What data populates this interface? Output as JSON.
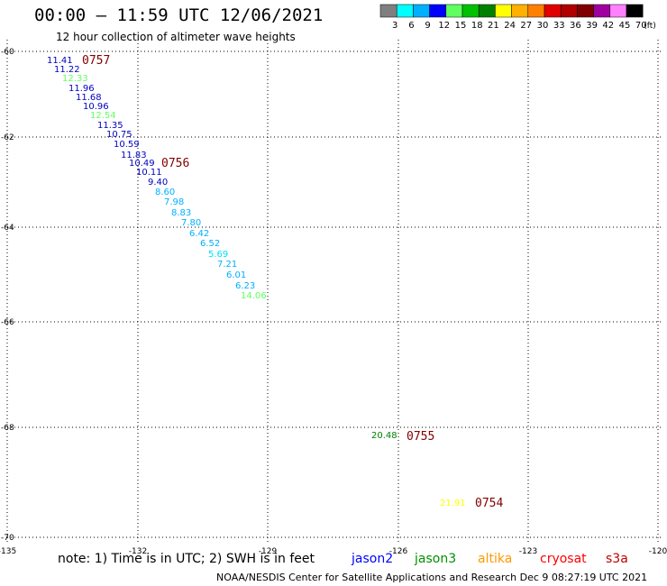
{
  "title": "00:00 – 11:59 UTC 12/06/2021",
  "subtitle": "12 hour collection of altimeter wave heights",
  "scale": {
    "values": [
      "3",
      "6",
      "9",
      "12",
      "15",
      "18",
      "21",
      "24",
      "27",
      "30",
      "33",
      "36",
      "39",
      "42",
      "45",
      "70"
    ],
    "unit": "(ft)",
    "colors": [
      "#7f7f7f",
      "#00ffff",
      "#00b0ff",
      "#0000ff",
      "#60ff60",
      "#00c000",
      "#008000",
      "#ffff00",
      "#ffb000",
      "#ff8000",
      "#e00000",
      "#b00000",
      "#800000",
      "#a000a0",
      "#ff80ff",
      "#000000"
    ]
  },
  "axes": {
    "lon_ticks": [
      "-135",
      "-132",
      "-129",
      "-126",
      "-123",
      "-120"
    ],
    "lat_ticks": [
      "-60",
      "-62",
      "-64",
      "-66",
      "-68",
      "-70"
    ]
  },
  "passes": [
    {
      "label": "0757",
      "color": "#800000"
    },
    {
      "label": "0756",
      "color": "#800000"
    },
    {
      "label": "0755",
      "color": "#800000"
    },
    {
      "label": "0754",
      "color": "#800000"
    }
  ],
  "observations": [
    {
      "v": "11.41",
      "c": "#0000c0"
    },
    {
      "v": "11.22",
      "c": "#0000c0"
    },
    {
      "v": "12.33",
      "c": "#60ff60"
    },
    {
      "v": "11.96",
      "c": "#0000c0"
    },
    {
      "v": "11.68",
      "c": "#0000c0"
    },
    {
      "v": "10.96",
      "c": "#0000c0"
    },
    {
      "v": "12.54",
      "c": "#60ff60"
    },
    {
      "v": "11.35",
      "c": "#0000c0"
    },
    {
      "v": "10.75",
      "c": "#0000c0"
    },
    {
      "v": "10.59",
      "c": "#0000c0"
    },
    {
      "v": "11.83",
      "c": "#0000c0"
    },
    {
      "v": "10.49",
      "c": "#0000c0"
    },
    {
      "v": "10.11",
      "c": "#0000c0"
    },
    {
      "v": "9.40",
      "c": "#0000c0"
    },
    {
      "v": "8.60",
      "c": "#00b0ff"
    },
    {
      "v": "7.98",
      "c": "#00b0ff"
    },
    {
      "v": "8.83",
      "c": "#00b0ff"
    },
    {
      "v": "7.80",
      "c": "#00b0ff"
    },
    {
      "v": "6.42",
      "c": "#00b0ff"
    },
    {
      "v": "6.52",
      "c": "#00b0ff"
    },
    {
      "v": "5.69",
      "c": "#00e0f0"
    },
    {
      "v": "7.21",
      "c": "#00b0ff"
    },
    {
      "v": "6.01",
      "c": "#00b0ff"
    },
    {
      "v": "6.23",
      "c": "#00b0ff"
    },
    {
      "v": "14.06",
      "c": "#60ff60"
    },
    {
      "v": "20.48",
      "c": "#008000"
    },
    {
      "v": "21.91",
      "c": "#ffff00"
    }
  ],
  "note": "note: 1) Time is in UTC; 2) SWH is in feet",
  "satellites": [
    {
      "name": "jason2",
      "color": "#0000ff"
    },
    {
      "name": "jason3",
      "color": "#009000"
    },
    {
      "name": "altika",
      "color": "#ff9900"
    },
    {
      "name": "cryosat",
      "color": "#ff0000"
    },
    {
      "name": "s3a",
      "color": "#c00000"
    }
  ],
  "footer": "NOAA/NESDIS Center for Satellite Applications and Research   Dec  9 08:27:19 UTC 2021"
}
